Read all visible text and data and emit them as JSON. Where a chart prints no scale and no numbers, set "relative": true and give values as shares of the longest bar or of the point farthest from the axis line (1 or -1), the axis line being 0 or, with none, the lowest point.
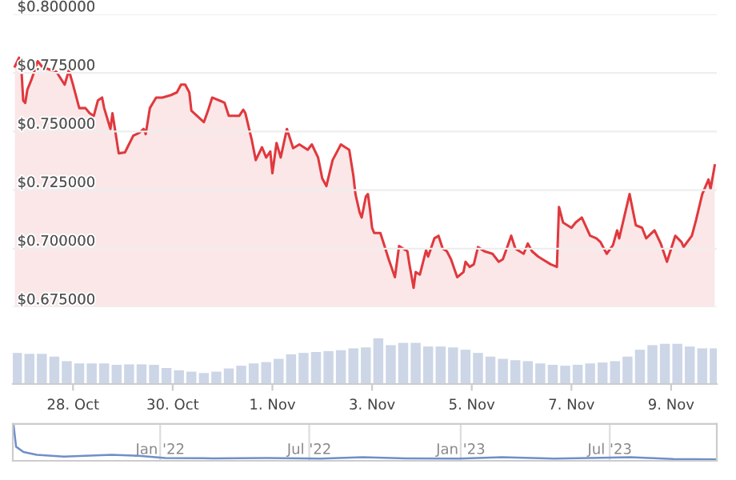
{
  "chart_data": [
    {
      "type": "area",
      "color": "#e0393e",
      "ylim": [
        0.675,
        0.8
      ],
      "yticks": [
        {
          "value": 0.675,
          "label": "$0.675000"
        },
        {
          "value": 0.7,
          "label": "$0.700000"
        },
        {
          "value": 0.725,
          "label": "$0.725000"
        },
        {
          "value": 0.75,
          "label": "$0.750000"
        },
        {
          "value": 0.775,
          "label": "$0.775000"
        },
        {
          "value": 0.8,
          "label": "$0.800000"
        }
      ],
      "xlim": [
        "2023-10-26T19:00",
        "2023-11-09T22:00"
      ],
      "grid": "y",
      "tick_labels": "y",
      "x": [
        "2023-10-26T20:00",
        "2023-10-26T22:00",
        "2023-10-26T23:00",
        "2023-10-27T00:00",
        "2023-10-27T01:00",
        "2023-10-27T02:00",
        "2023-10-27T04:00",
        "2023-10-27T07:00",
        "2023-10-27T09:00",
        "2023-10-27T12:00",
        "2023-10-27T16:00",
        "2023-10-27T20:00",
        "2023-10-27T22:00",
        "2023-10-28T00:00",
        "2023-10-28T03:00",
        "2023-10-28T06:00",
        "2023-10-28T08:00",
        "2023-10-28T10:00",
        "2023-10-28T12:00",
        "2023-10-28T14:00",
        "2023-10-28T15:00",
        "2023-10-28T18:00",
        "2023-10-28T19:00",
        "2023-10-28T22:00",
        "2023-10-29T01:00",
        "2023-10-29T05:00",
        "2023-10-29T08:00",
        "2023-10-29T10:00",
        "2023-10-29T11:00",
        "2023-10-29T13:00",
        "2023-10-29T16:00",
        "2023-10-29T19:00",
        "2023-10-29T23:00",
        "2023-10-30T02:00",
        "2023-10-30T04:00",
        "2023-10-30T06:00",
        "2023-10-30T08:00",
        "2023-10-30T09:00",
        "2023-10-30T15:00",
        "2023-10-30T17:00",
        "2023-10-30T19:00",
        "2023-10-31T00:00",
        "2023-10-31T01:00",
        "2023-10-31T03:00",
        "2023-10-31T08:00",
        "2023-10-31T10:00",
        "2023-10-31T11:00",
        "2023-10-31T14:00",
        "2023-10-31T16:00",
        "2023-10-31T19:00",
        "2023-10-31T21:00",
        "2023-10-31T23:00",
        "2023-11-01T00:00",
        "2023-11-01T02:00",
        "2023-11-01T04:00",
        "2023-11-01T07:00",
        "2023-11-01T10:00",
        "2023-11-01T13:00",
        "2023-11-01T17:00",
        "2023-11-01T19:00",
        "2023-11-01T22:00",
        "2023-11-02T00:00",
        "2023-11-02T02:00",
        "2023-11-02T05:00",
        "2023-11-02T09:00",
        "2023-11-02T11:00",
        "2023-11-02T13:00",
        "2023-11-02T15:00",
        "2023-11-02T16:00",
        "2023-11-02T18:00",
        "2023-11-02T19:00",
        "2023-11-02T21:00",
        "2023-11-02T22:00",
        "2023-11-02T23:00",
        "2023-11-03T00:00",
        "2023-11-03T01:00",
        "2023-11-03T04:00",
        "2023-11-03T06:00",
        "2023-11-03T08:00",
        "2023-11-03T11:00",
        "2023-11-03T12:00",
        "2023-11-03T13:00",
        "2023-11-03T17:00",
        "2023-11-03T18:00",
        "2023-11-03T20:00",
        "2023-11-03T21:00",
        "2023-11-03T23:00",
        "2023-11-04T02:00",
        "2023-11-04T03:00",
        "2023-11-04T06:00",
        "2023-11-04T08:00",
        "2023-11-04T10:00",
        "2023-11-04T12:00",
        "2023-11-04T14:00",
        "2023-11-04T17:00",
        "2023-11-04T20:00",
        "2023-11-04T21:00",
        "2023-11-04T23:00",
        "2023-11-05T01:00",
        "2023-11-05T03:00",
        "2023-11-05T06:00",
        "2023-11-05T10:00",
        "2023-11-05T13:00",
        "2023-11-05T15:00",
        "2023-11-05T19:00",
        "2023-11-05T21:00",
        "2023-11-06T01:00",
        "2023-11-06T03:00",
        "2023-11-06T05:00",
        "2023-11-06T08:00",
        "2023-11-06T10:00",
        "2023-11-06T14:00",
        "2023-11-06T17:00",
        "2023-11-06T18:00",
        "2023-11-06T20:00",
        "2023-11-07T00:00",
        "2023-11-07T02:00",
        "2023-11-07T05:00",
        "2023-11-07T09:00",
        "2023-11-07T12:00",
        "2023-11-07T14:00",
        "2023-11-07T17:00",
        "2023-11-07T20:00",
        "2023-11-07T22:00",
        "2023-11-07T23:00",
        "2023-11-08T04:00",
        "2023-11-08T07:00",
        "2023-11-08T10:00",
        "2023-11-08T12:00",
        "2023-11-08T16:00",
        "2023-11-08T19:00",
        "2023-11-08T22:00",
        "2023-11-09T02:00",
        "2023-11-09T05:00",
        "2023-11-09T06:00",
        "2023-11-09T10:00",
        "2023-11-09T12:00",
        "2023-11-09T15:00",
        "2023-11-09T18:00",
        "2023-11-09T19:00",
        "2023-11-09T21:00"
      ],
      "values": [
        0.7778,
        0.7815,
        0.7789,
        0.7633,
        0.7622,
        0.7678,
        0.7722,
        0.78,
        0.7778,
        0.7767,
        0.7755,
        0.77,
        0.7762,
        0.77,
        0.76,
        0.76,
        0.7578,
        0.7567,
        0.7633,
        0.7645,
        0.76,
        0.7511,
        0.7578,
        0.7407,
        0.7411,
        0.7482,
        0.7495,
        0.7511,
        0.7489,
        0.76,
        0.7645,
        0.7645,
        0.7655,
        0.7667,
        0.77,
        0.77,
        0.7667,
        0.7589,
        0.754,
        0.7589,
        0.7645,
        0.7627,
        0.7622,
        0.7567,
        0.7567,
        0.7593,
        0.7578,
        0.7467,
        0.7378,
        0.7433,
        0.7389,
        0.7415,
        0.7322,
        0.7451,
        0.7389,
        0.7511,
        0.7429,
        0.7445,
        0.7422,
        0.7445,
        0.7389,
        0.73,
        0.7267,
        0.7378,
        0.7445,
        0.7433,
        0.7422,
        0.7311,
        0.7233,
        0.7155,
        0.7133,
        0.7222,
        0.7233,
        0.7167,
        0.7089,
        0.7067,
        0.7067,
        0.7011,
        0.6955,
        0.6878,
        0.6944,
        0.7011,
        0.6989,
        0.6933,
        0.6833,
        0.69,
        0.6889,
        0.6993,
        0.6966,
        0.7044,
        0.7055,
        0.7,
        0.6989,
        0.6955,
        0.6878,
        0.69,
        0.6944,
        0.6922,
        0.6933,
        0.7007,
        0.6989,
        0.6978,
        0.6944,
        0.6955,
        0.7055,
        0.7,
        0.6978,
        0.7022,
        0.6989,
        0.6966,
        0.6955,
        0.6933,
        0.6922,
        0.7178,
        0.7111,
        0.7089,
        0.7111,
        0.7133,
        0.7055,
        0.7044,
        0.7028,
        0.6978,
        0.7015,
        0.7078,
        0.7044,
        0.7233,
        0.71,
        0.7089,
        0.7044,
        0.7078,
        0.7022,
        0.6944,
        0.7055,
        0.7028,
        0.7007,
        0.7055,
        0.7122,
        0.7233,
        0.7295,
        0.7255,
        0.7355
      ]
    },
    {
      "type": "bar",
      "relative": true,
      "color": "#ccd6e6",
      "tick_labels": "x",
      "xlim": [
        "2023-10-26T19:00",
        "2023-11-09T22:00"
      ],
      "xticks": [
        {
          "value": "2023-10-28",
          "label": "28. Oct"
        },
        {
          "value": "2023-10-30",
          "label": "30. Oct"
        },
        {
          "value": "2023-11-01",
          "label": "1. Nov"
        },
        {
          "value": "2023-11-03",
          "label": "3. Nov"
        },
        {
          "value": "2023-11-05",
          "label": "5. Nov"
        },
        {
          "value": "2023-11-07",
          "label": "7. Nov"
        },
        {
          "value": "2023-11-09",
          "label": "9. Nov"
        }
      ],
      "x": [
        "2023-10-26T21:00",
        "2023-10-27T03:00",
        "2023-10-27T09:00",
        "2023-10-27T15:00",
        "2023-10-27T21:00",
        "2023-10-28T03:00",
        "2023-10-28T09:00",
        "2023-10-28T15:00",
        "2023-10-28T21:00",
        "2023-10-29T03:00",
        "2023-10-29T09:00",
        "2023-10-29T15:00",
        "2023-10-29T21:00",
        "2023-10-30T03:00",
        "2023-10-30T09:00",
        "2023-10-30T15:00",
        "2023-10-30T21:00",
        "2023-10-31T03:00",
        "2023-10-31T09:00",
        "2023-10-31T15:00",
        "2023-10-31T21:00",
        "2023-11-01T03:00",
        "2023-11-01T09:00",
        "2023-11-01T15:00",
        "2023-11-01T21:00",
        "2023-11-02T03:00",
        "2023-11-02T09:00",
        "2023-11-02T15:00",
        "2023-11-02T21:00",
        "2023-11-03T03:00",
        "2023-11-03T09:00",
        "2023-11-03T15:00",
        "2023-11-03T21:00",
        "2023-11-04T03:00",
        "2023-11-04T09:00",
        "2023-11-04T15:00",
        "2023-11-04T21:00",
        "2023-11-05T03:00",
        "2023-11-05T09:00",
        "2023-11-05T15:00",
        "2023-11-05T21:00",
        "2023-11-06T03:00",
        "2023-11-06T09:00",
        "2023-11-06T15:00",
        "2023-11-06T21:00",
        "2023-11-07T03:00",
        "2023-11-07T09:00",
        "2023-11-07T15:00",
        "2023-11-07T21:00",
        "2023-11-08T03:00",
        "2023-11-08T09:00",
        "2023-11-08T15:00",
        "2023-11-08T21:00",
        "2023-11-09T03:00",
        "2023-11-09T09:00",
        "2023-11-09T15:00",
        "2023-11-09T21:00"
      ],
      "values": [
        0.68,
        0.66,
        0.66,
        0.6,
        0.5,
        0.45,
        0.45,
        0.45,
        0.42,
        0.43,
        0.43,
        0.42,
        0.35,
        0.3,
        0.27,
        0.24,
        0.27,
        0.34,
        0.4,
        0.45,
        0.48,
        0.55,
        0.65,
        0.68,
        0.7,
        0.72,
        0.74,
        0.78,
        0.8,
        1.0,
        0.85,
        0.9,
        0.9,
        0.82,
        0.82,
        0.8,
        0.75,
        0.68,
        0.6,
        0.55,
        0.52,
        0.5,
        0.45,
        0.42,
        0.4,
        0.42,
        0.45,
        0.47,
        0.5,
        0.6,
        0.75,
        0.85,
        0.88,
        0.88,
        0.82,
        0.78,
        0.78
      ]
    },
    {
      "type": "line",
      "relative": true,
      "color": "#6f8fc9",
      "tick_labels": "x",
      "grid": "x",
      "xlim": [
        "2021-07-06",
        "2023-11-08"
      ],
      "xticks": [
        {
          "value": "2022-01-01",
          "label": "Jan '22"
        },
        {
          "value": "2022-07-01",
          "label": "Jul '22"
        },
        {
          "value": "2023-01-01",
          "label": "Jan '23"
        },
        {
          "value": "2023-07-01",
          "label": "Jul '23"
        }
      ],
      "x": [
        "2021-07-07",
        "2021-07-10",
        "2021-07-19",
        "2021-08-04",
        "2021-09-06",
        "2021-10-08",
        "2021-11-03",
        "2021-12-06",
        "2022-01-07",
        "2022-03-06",
        "2022-05-10",
        "2022-07-15",
        "2022-09-04",
        "2022-10-26",
        "2022-12-30",
        "2023-02-20",
        "2023-04-25",
        "2023-07-26",
        "2023-09-16",
        "2023-11-06"
      ],
      "values": [
        1.0,
        0.4,
        0.25,
        0.17,
        0.12,
        0.15,
        0.17,
        0.14,
        0.08,
        0.07,
        0.08,
        0.06,
        0.1,
        0.07,
        0.06,
        0.1,
        0.06,
        0.1,
        0.05,
        0.04
      ]
    }
  ]
}
